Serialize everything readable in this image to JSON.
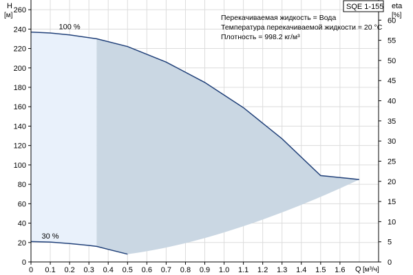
{
  "chart_data": {
    "type": "area",
    "product_label": "SQE 1-155",
    "info_lines": [
      "Перекачиваемая жидкость = Вода",
      "Температура перекачиваемой жидкости = 20 °C",
      "Плотность = 998.2 кг/м³"
    ],
    "xlabel": "Q",
    "xunit": "[м³/ч]",
    "ylabel_left": "H",
    "yunit_left": "[м]",
    "ylabel_right": "eta",
    "yunit_right": "[%]",
    "xlim": [
      0,
      1.8
    ],
    "ylim_left": [
      0,
      270
    ],
    "ylim_right": [
      0,
      65
    ],
    "x_ticks": [
      "0",
      "0.1",
      "0.2",
      "0.3",
      "0.4",
      "0.5",
      "0.6",
      "0.7",
      "0.8",
      "0.9",
      "1.0",
      "1.1",
      "1.2",
      "1.3",
      "1.4",
      "1.5",
      "1.6"
    ],
    "y_ticks_left": [
      "0",
      "20",
      "40",
      "60",
      "80",
      "100",
      "120",
      "140",
      "160",
      "180",
      "200",
      "220",
      "240",
      "260"
    ],
    "y_ticks_right": [
      "0",
      "5",
      "10",
      "15",
      "20",
      "25",
      "30",
      "35",
      "40",
      "45",
      "50",
      "55",
      "60"
    ],
    "grid": true,
    "series": [
      {
        "name": "100 %",
        "x": [
          0,
          0.1,
          0.2,
          0.34,
          0.5,
          0.7,
          0.9,
          1.1,
          1.3,
          1.5,
          1.7
        ],
        "values": [
          237,
          236,
          234,
          230,
          222,
          206,
          185,
          159,
          127,
          89,
          85
        ]
      },
      {
        "name": "30 %",
        "x": [
          0,
          0.1,
          0.2,
          0.3,
          0.34,
          0.4,
          0.5
        ],
        "values": [
          21,
          20.5,
          19,
          17,
          16,
          13,
          8
        ]
      }
    ],
    "colors": {
      "curve": "#1f3f78",
      "light_area": "#e9f1fb",
      "dark_area": "#cad7e3",
      "grid": "#dcdcdc"
    }
  }
}
